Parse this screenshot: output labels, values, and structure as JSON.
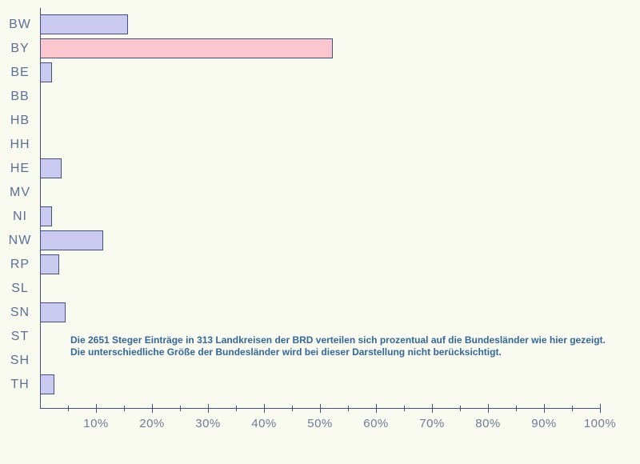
{
  "background": "#FAFBF0",
  "chart_data": {
    "type": "bar",
    "orientation": "horizontal",
    "title": "",
    "xlabel": "",
    "ylabel": "",
    "categories": [
      "BW",
      "BY",
      "BE",
      "BB",
      "HB",
      "HH",
      "HE",
      "MV",
      "NI",
      "NW",
      "RP",
      "SL",
      "SN",
      "ST",
      "SH",
      "TH"
    ],
    "values": [
      15.6,
      52.1,
      2.0,
      0,
      0,
      0,
      3.7,
      0,
      2.0,
      11.1,
      3.3,
      0,
      4.4,
      0,
      0,
      2.4
    ],
    "unit": "%",
    "xlim": [
      0,
      100
    ],
    "x_tick_labels": [
      "10%",
      "20%",
      "30%",
      "40%",
      "50%",
      "60%",
      "70%",
      "80%",
      "90%",
      "100%"
    ],
    "x_major_tick_step": 10,
    "x_minor_tick_step": 5,
    "grid": false,
    "legend_position": "none",
    "highlight_category": "BY",
    "colors": {
      "bar_fill": "#CACAF0",
      "highlight_fill": "#FCC6CE",
      "bar_border": "#44517C",
      "axis": "#44517C",
      "tick_label": "#6E7A96",
      "category_label": "#5C6E94"
    }
  },
  "annotation": {
    "line1": "Die 2651 Steger Einträge in 313 Landkreisen der BRD verteilen sich prozentual auf die Bundesländer wie hier gezeigt.",
    "line2": "Die unterschiedliche Größe der Bundesländer wird bei dieser Darstellung nicht berücksichtigt.",
    "color": "#336699"
  }
}
